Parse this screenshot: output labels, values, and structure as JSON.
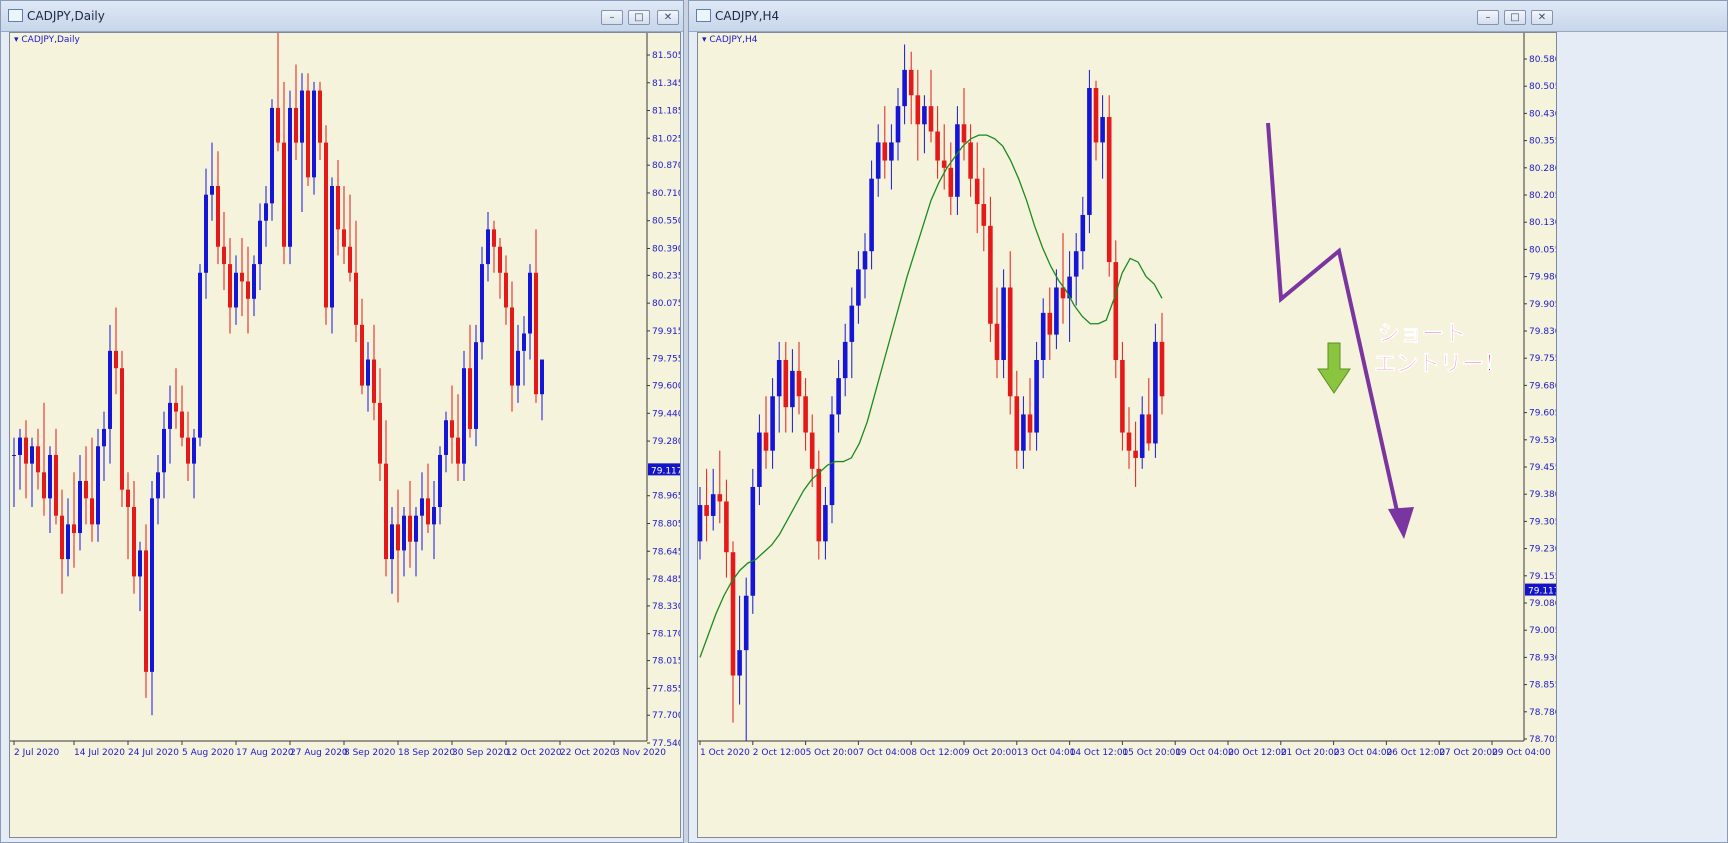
{
  "colors": {
    "bull": "#1515d8",
    "bear": "#e41a1a",
    "background": "#f5f3dc",
    "axis_text": "#1b1bcc",
    "ma_line": "#1c8a1c",
    "price_tag_bg": "#1313c8",
    "annotation_line": "#7a35a0",
    "annotation_text": "#e8156e",
    "down_arrow": "#8bc53f"
  },
  "windows": [
    {
      "title": "CADJPY,Daily",
      "symbol_label": "CADJPY,Daily",
      "icon": "chart-window-icon",
      "buttons": [
        "minimize-icon",
        "maximize-icon",
        "close-icon"
      ],
      "button_glyphs": {
        "minimize": "–",
        "maximize": "□",
        "close": "✕"
      }
    },
    {
      "title": "CADJPY,H4",
      "symbol_label": "CADJPY,H4",
      "icon": "chart-window-icon",
      "buttons": [
        "minimize-icon",
        "maximize-icon",
        "close-icon"
      ],
      "button_glyphs": {
        "minimize": "–",
        "maximize": "□",
        "close": "✕"
      }
    }
  ],
  "chart_data": [
    {
      "type": "candlestick",
      "symbol": "CADJPY",
      "timeframe": "Daily",
      "y_ticks": [
        "81.505",
        "81.345",
        "81.185",
        "81.025",
        "80.870",
        "80.710",
        "80.550",
        "80.390",
        "80.235",
        "80.075",
        "79.915",
        "79.755",
        "79.600",
        "79.440",
        "79.280",
        "79.117",
        "78.965",
        "78.805",
        "78.645",
        "78.485",
        "78.330",
        "78.170",
        "78.015",
        "77.855",
        "77.700",
        "77.540"
      ],
      "ylim": [
        77.54,
        81.505
      ],
      "current_price": "79.117",
      "x_labels": [
        "2 Jul 2020",
        "14 Jul 2020",
        "24 Jul 2020",
        "5 Aug 2020",
        "17 Aug 2020",
        "27 Aug 2020",
        "8 Sep 2020",
        "18 Sep 2020",
        "30 Sep 2020",
        "12 Oct 2020",
        "22 Oct 2020",
        "3 Nov 2020"
      ],
      "x_label_slots": [
        0,
        10,
        19,
        28,
        37,
        46,
        55,
        64,
        73,
        82,
        91,
        100
      ],
      "slot_count": 105,
      "candles": [
        [
          79.2,
          79.3,
          78.9,
          79.2
        ],
        [
          79.2,
          79.35,
          79.0,
          79.3
        ],
        [
          79.3,
          79.4,
          78.95,
          79.15
        ],
        [
          79.15,
          79.3,
          78.9,
          79.25
        ],
        [
          79.25,
          79.35,
          79.0,
          79.1
        ],
        [
          79.1,
          79.5,
          78.85,
          78.95
        ],
        [
          78.95,
          79.25,
          78.75,
          79.2
        ],
        [
          79.2,
          79.35,
          78.8,
          78.85
        ],
        [
          78.85,
          79.0,
          78.4,
          78.6
        ],
        [
          78.6,
          78.95,
          78.5,
          78.8
        ],
        [
          78.8,
          79.1,
          78.55,
          78.75
        ],
        [
          78.75,
          79.2,
          78.65,
          79.05
        ],
        [
          79.05,
          79.25,
          78.8,
          78.95
        ],
        [
          78.95,
          79.3,
          78.7,
          78.8
        ],
        [
          78.8,
          79.35,
          78.7,
          79.25
        ],
        [
          79.25,
          79.45,
          79.05,
          79.35
        ],
        [
          79.35,
          79.95,
          79.15,
          79.8
        ],
        [
          79.8,
          80.05,
          79.55,
          79.7
        ],
        [
          79.7,
          79.8,
          78.9,
          79.0
        ],
        [
          79.0,
          79.1,
          78.6,
          78.9
        ],
        [
          78.9,
          79.05,
          78.4,
          78.5
        ],
        [
          78.5,
          78.7,
          78.3,
          78.65
        ],
        [
          78.65,
          78.8,
          77.8,
          77.95
        ],
        [
          77.95,
          79.05,
          77.7,
          78.95
        ],
        [
          78.95,
          79.2,
          78.8,
          79.1
        ],
        [
          79.1,
          79.45,
          78.95,
          79.35
        ],
        [
          79.35,
          79.6,
          79.15,
          79.5
        ],
        [
          79.5,
          79.7,
          79.35,
          79.45
        ],
        [
          79.45,
          79.6,
          79.25,
          79.3
        ],
        [
          79.3,
          79.45,
          79.05,
          79.15
        ],
        [
          79.15,
          79.35,
          78.95,
          79.3
        ],
        [
          79.3,
          80.3,
          79.25,
          80.25
        ],
        [
          80.25,
          80.85,
          80.1,
          80.7
        ],
        [
          80.7,
          81.0,
          80.55,
          80.75
        ],
        [
          80.75,
          80.95,
          80.3,
          80.4
        ],
        [
          80.4,
          80.6,
          80.15,
          80.3
        ],
        [
          80.3,
          80.45,
          79.9,
          80.05
        ],
        [
          80.05,
          80.35,
          79.95,
          80.25
        ],
        [
          80.25,
          80.45,
          80.0,
          80.2
        ],
        [
          80.2,
          80.4,
          79.9,
          80.1
        ],
        [
          80.1,
          80.35,
          80.0,
          80.3
        ],
        [
          80.3,
          80.65,
          80.15,
          80.55
        ],
        [
          80.55,
          80.75,
          80.4,
          80.65
        ],
        [
          80.65,
          81.25,
          80.55,
          81.2
        ],
        [
          81.2,
          81.65,
          80.95,
          81.0
        ],
        [
          81.0,
          81.35,
          80.3,
          80.4
        ],
        [
          80.4,
          81.3,
          80.3,
          81.2
        ],
        [
          81.2,
          81.45,
          80.9,
          81.0
        ],
        [
          81.0,
          81.4,
          80.6,
          81.3
        ],
        [
          81.3,
          81.4,
          80.75,
          80.8
        ],
        [
          80.8,
          81.35,
          80.7,
          81.3
        ],
        [
          81.3,
          81.35,
          80.9,
          81.0
        ],
        [
          81.0,
          81.1,
          79.95,
          80.05
        ],
        [
          80.05,
          80.8,
          79.9,
          80.75
        ],
        [
          80.75,
          80.9,
          80.35,
          80.5
        ],
        [
          80.5,
          80.75,
          80.3,
          80.4
        ],
        [
          80.4,
          80.7,
          80.2,
          80.25
        ],
        [
          80.25,
          80.55,
          79.85,
          79.95
        ],
        [
          79.95,
          80.1,
          79.55,
          79.6
        ],
        [
          79.6,
          79.85,
          79.45,
          79.75
        ],
        [
          79.75,
          79.95,
          79.4,
          79.5
        ],
        [
          79.5,
          79.7,
          79.05,
          79.15
        ],
        [
          79.15,
          79.4,
          78.5,
          78.6
        ],
        [
          78.6,
          78.9,
          78.4,
          78.8
        ],
        [
          78.8,
          79.0,
          78.35,
          78.65
        ],
        [
          78.65,
          78.9,
          78.5,
          78.85
        ],
        [
          78.85,
          79.05,
          78.55,
          78.7
        ],
        [
          78.7,
          78.9,
          78.5,
          78.85
        ],
        [
          78.85,
          79.1,
          78.65,
          78.95
        ],
        [
          78.95,
          79.15,
          78.75,
          78.8
        ],
        [
          78.8,
          79.05,
          78.6,
          78.9
        ],
        [
          78.9,
          79.25,
          78.8,
          79.2
        ],
        [
          79.2,
          79.45,
          79.1,
          79.4
        ],
        [
          79.4,
          79.6,
          79.15,
          79.3
        ],
        [
          79.3,
          79.55,
          79.05,
          79.15
        ],
        [
          79.15,
          79.8,
          79.05,
          79.7
        ],
        [
          79.7,
          79.95,
          79.3,
          79.35
        ],
        [
          79.35,
          79.95,
          79.25,
          79.85
        ],
        [
          79.85,
          80.4,
          79.75,
          80.3
        ],
        [
          80.3,
          80.6,
          80.2,
          80.5
        ],
        [
          80.5,
          80.55,
          80.25,
          80.4
        ],
        [
          80.4,
          80.45,
          80.1,
          80.25
        ],
        [
          80.25,
          80.35,
          79.95,
          80.05
        ],
        [
          80.05,
          80.2,
          79.45,
          79.6
        ],
        [
          79.6,
          79.95,
          79.5,
          79.8
        ],
        [
          79.8,
          80.0,
          79.6,
          79.9
        ],
        [
          79.9,
          80.3,
          79.75,
          80.25
        ],
        [
          80.25,
          80.5,
          79.5,
          79.55
        ],
        [
          79.55,
          79.75,
          79.4,
          79.75
        ]
      ]
    },
    {
      "type": "candlestick",
      "symbol": "CADJPY",
      "timeframe": "H4",
      "y_ticks": [
        "80.580",
        "80.505",
        "80.430",
        "80.355",
        "80.280",
        "80.205",
        "80.130",
        "80.055",
        "79.980",
        "79.905",
        "79.830",
        "79.755",
        "79.680",
        "79.605",
        "79.530",
        "79.455",
        "79.380",
        "79.305",
        "79.230",
        "79.155",
        "79.117",
        "79.080",
        "79.005",
        "78.930",
        "78.855",
        "78.780",
        "78.705"
      ],
      "ylim": [
        78.705,
        80.58
      ],
      "current_price": "79.117",
      "x_labels": [
        "1 Oct 2020",
        "2 Oct 12:00",
        "5 Oct 20:00",
        "7 Oct 04:00",
        "8 Oct 12:00",
        "9 Oct 20:00",
        "13 Oct 04:00",
        "14 Oct 12:00",
        "15 Oct 20:00",
        "19 Oct 04:00",
        "20 Oct 12:00",
        "21 Oct 20:00",
        "23 Oct 04:00",
        "26 Oct 12:00",
        "27 Oct 20:00",
        "29 Oct 04:00"
      ],
      "x_label_slots": [
        0,
        8,
        16,
        24,
        32,
        40,
        48,
        56,
        64,
        72,
        80,
        88,
        96,
        104,
        112,
        120
      ],
      "slot_count": 126,
      "moving_average": {
        "name": "MA",
        "values": [
          78.93,
          78.99,
          79.05,
          79.1,
          79.14,
          79.17,
          79.19,
          79.2,
          79.22,
          79.24,
          79.27,
          79.31,
          79.35,
          79.39,
          79.42,
          79.44,
          79.46,
          79.47,
          79.47,
          79.48,
          79.52,
          79.58,
          79.66,
          79.74,
          79.82,
          79.9,
          79.98,
          80.05,
          80.12,
          80.19,
          80.24,
          80.28,
          80.31,
          80.34,
          80.36,
          80.37,
          80.37,
          80.36,
          80.34,
          80.3,
          80.25,
          80.19,
          80.12,
          80.06,
          80.01,
          79.97,
          79.94,
          79.9,
          79.87,
          79.85,
          79.85,
          79.86,
          79.92,
          79.99,
          80.03,
          80.02,
          79.98,
          79.96,
          79.92
        ]
      },
      "candles": [
        [
          79.25,
          79.4,
          79.2,
          79.35
        ],
        [
          79.35,
          79.45,
          79.25,
          79.32
        ],
        [
          79.32,
          79.45,
          79.28,
          79.38
        ],
        [
          79.38,
          79.5,
          79.3,
          79.36
        ],
        [
          79.36,
          79.42,
          79.15,
          79.22
        ],
        [
          79.22,
          79.25,
          78.75,
          78.88
        ],
        [
          78.88,
          79.1,
          78.8,
          78.95
        ],
        [
          78.95,
          79.15,
          78.7,
          79.1
        ],
        [
          79.1,
          79.45,
          79.05,
          79.4
        ],
        [
          79.4,
          79.6,
          79.35,
          79.55
        ],
        [
          79.55,
          79.65,
          79.45,
          79.5
        ],
        [
          79.5,
          79.7,
          79.45,
          79.65
        ],
        [
          79.65,
          79.8,
          79.55,
          79.75
        ],
        [
          79.75,
          79.8,
          79.55,
          79.62
        ],
        [
          79.62,
          79.78,
          79.55,
          79.72
        ],
        [
          79.72,
          79.8,
          79.6,
          79.65
        ],
        [
          79.65,
          79.7,
          79.5,
          79.55
        ],
        [
          79.55,
          79.6,
          79.4,
          79.45
        ],
        [
          79.45,
          79.5,
          79.2,
          79.25
        ],
        [
          79.25,
          79.4,
          79.2,
          79.35
        ],
        [
          79.35,
          79.65,
          79.3,
          79.6
        ],
        [
          79.6,
          79.75,
          79.55,
          79.7
        ],
        [
          79.7,
          79.85,
          79.65,
          79.8
        ],
        [
          79.8,
          79.95,
          79.7,
          79.9
        ],
        [
          79.9,
          80.05,
          79.85,
          80.0
        ],
        [
          80.0,
          80.1,
          79.92,
          80.05
        ],
        [
          80.05,
          80.3,
          80.0,
          80.25
        ],
        [
          80.25,
          80.4,
          80.2,
          80.35
        ],
        [
          80.35,
          80.45,
          80.25,
          80.3
        ],
        [
          80.3,
          80.4,
          80.22,
          80.35
        ],
        [
          80.35,
          80.5,
          80.3,
          80.45
        ],
        [
          80.45,
          80.62,
          80.4,
          80.55
        ],
        [
          80.55,
          80.6,
          80.4,
          80.48
        ],
        [
          80.48,
          80.55,
          80.3,
          80.4
        ],
        [
          80.4,
          80.48,
          80.32,
          80.45
        ],
        [
          80.45,
          80.55,
          80.35,
          80.38
        ],
        [
          80.38,
          80.45,
          80.25,
          80.3
        ],
        [
          80.3,
          80.4,
          80.22,
          80.28
        ],
        [
          80.28,
          80.35,
          80.15,
          80.2
        ],
        [
          80.2,
          80.45,
          80.15,
          80.4
        ],
        [
          80.4,
          80.5,
          80.3,
          80.35
        ],
        [
          80.35,
          80.4,
          80.2,
          80.25
        ],
        [
          80.25,
          80.35,
          80.1,
          80.18
        ],
        [
          80.18,
          80.28,
          80.05,
          80.12
        ],
        [
          80.12,
          80.2,
          79.8,
          79.85
        ],
        [
          79.85,
          79.95,
          79.7,
          79.75
        ],
        [
          79.75,
          80.0,
          79.7,
          79.95
        ],
        [
          79.95,
          80.05,
          79.6,
          79.65
        ],
        [
          79.65,
          79.72,
          79.45,
          79.5
        ],
        [
          79.5,
          79.65,
          79.45,
          79.6
        ],
        [
          79.6,
          79.7,
          79.5,
          79.55
        ],
        [
          79.55,
          79.8,
          79.5,
          79.75
        ],
        [
          79.75,
          79.92,
          79.7,
          79.88
        ],
        [
          79.88,
          79.95,
          79.75,
          79.82
        ],
        [
          79.82,
          80.0,
          79.78,
          79.95
        ],
        [
          79.95,
          80.1,
          79.85,
          79.92
        ],
        [
          79.92,
          80.05,
          79.8,
          79.98
        ],
        [
          79.98,
          80.1,
          79.9,
          80.05
        ],
        [
          80.05,
          80.2,
          80.0,
          80.15
        ],
        [
          80.15,
          80.55,
          80.1,
          80.5
        ],
        [
          80.5,
          80.52,
          80.3,
          80.35
        ],
        [
          80.35,
          80.48,
          80.25,
          80.42
        ],
        [
          80.42,
          80.48,
          79.98,
          80.02
        ],
        [
          80.02,
          80.08,
          79.7,
          79.75
        ],
        [
          79.75,
          79.8,
          79.5,
          79.55
        ],
        [
          79.55,
          79.62,
          79.45,
          79.5
        ],
        [
          79.5,
          79.58,
          79.4,
          79.48
        ],
        [
          79.48,
          79.65,
          79.45,
          79.6
        ],
        [
          79.6,
          79.7,
          79.5,
          79.52
        ],
        [
          79.52,
          79.85,
          79.48,
          79.8
        ],
        [
          79.8,
          79.88,
          79.6,
          79.65
        ]
      ]
    }
  ],
  "annotation": {
    "lines": [
      "ショート",
      "エントリー！"
    ]
  }
}
